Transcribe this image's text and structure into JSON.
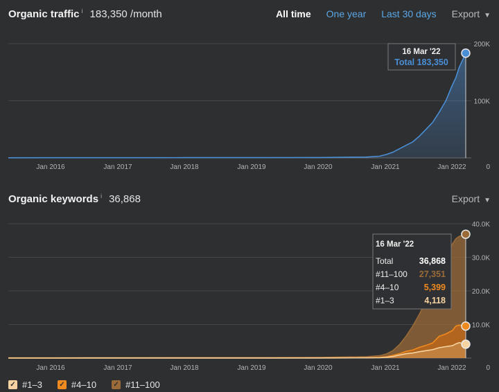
{
  "traffic": {
    "title": "Organic traffic",
    "info_icon": "i",
    "value": "183,350 /month",
    "tabs": [
      "All time",
      "One year",
      "Last 30 days"
    ],
    "export_label": "Export",
    "tooltip": {
      "date": "16 Mar '22",
      "label": "Total",
      "value": "183,350"
    }
  },
  "keywords": {
    "title": "Organic keywords",
    "info_icon": "i",
    "value": "36,868",
    "export_label": "Export",
    "tooltip": {
      "date": "16 Mar '22",
      "rows": [
        {
          "label": "Total",
          "value": "36,868"
        },
        {
          "label": "#11–100",
          "value": "27,351"
        },
        {
          "label": "#4–10",
          "value": "5,399"
        },
        {
          "label": "#1–3",
          "value": "4,118"
        }
      ]
    }
  },
  "legend": [
    {
      "label": "#1–3",
      "color": "#f6d3a0"
    },
    {
      "label": "#4–10",
      "color": "#f08a1f"
    },
    {
      "label": "#11–100",
      "color": "#9a6a38"
    }
  ],
  "chart_data": [
    {
      "type": "area",
      "title": "Organic traffic",
      "x_tick_labels": [
        "Jan 2016",
        "Jan 2017",
        "Jan 2018",
        "Jan 2019",
        "Jan 2020",
        "Jan 2021",
        "Jan 2022"
      ],
      "y_tick_labels": [
        "200K",
        "100K",
        "0"
      ],
      "ylim": [
        0,
        200000
      ],
      "color": "#4a8fd6",
      "series": [
        {
          "values_note_x_in_years": true,
          "x": [
            2015.3,
            2016,
            2017,
            2018,
            2019,
            2020,
            2020.7,
            2020.9,
            2021.0,
            2021.1,
            2021.2,
            2021.3,
            2021.4,
            2021.5,
            2021.6,
            2021.7,
            2021.8,
            2021.9,
            2022.0,
            2022.05,
            2022.1,
            2022.2
          ],
          "y": [
            300,
            400,
            400,
            500,
            500,
            700,
            1500,
            3000,
            6000,
            10000,
            16000,
            22000,
            28000,
            38000,
            50000,
            62000,
            80000,
            100000,
            128000,
            140000,
            158000,
            183350
          ]
        }
      ],
      "marker": {
        "x": 2022.2,
        "y": 183350,
        "label": "16 Mar '22"
      }
    },
    {
      "type": "area",
      "title": "Organic keywords",
      "x_tick_labels": [
        "Jan 2016",
        "Jan 2017",
        "Jan 2018",
        "Jan 2019",
        "Jan 2020",
        "Jan 2021",
        "Jan 2022"
      ],
      "y_tick_labels": [
        "40.0K",
        "30.0K",
        "20.0K",
        "10.0K",
        "0"
      ],
      "ylim": [
        0,
        40000
      ],
      "x": [
        2015.3,
        2016,
        2017,
        2018,
        2019,
        2020,
        2020.7,
        2020.9,
        2021.0,
        2021.1,
        2021.2,
        2021.3,
        2021.4,
        2021.5,
        2021.6,
        2021.7,
        2021.8,
        2021.9,
        2022.0,
        2022.05,
        2022.1,
        2022.2
      ],
      "series": [
        {
          "name": "#11–100",
          "color": "#9a6a38",
          "values": [
            100,
            100,
            120,
            150,
            150,
            200,
            400,
            700,
            1200,
            2200,
            4000,
            6500,
            9500,
            13000,
            17000,
            21000,
            25000,
            30000,
            34000,
            35500,
            36200,
            36868
          ]
        },
        {
          "name": "#4–10",
          "color": "#f08a1f",
          "values": [
            30,
            30,
            40,
            50,
            50,
            70,
            120,
            200,
            400,
            800,
            1300,
            2000,
            2400,
            3200,
            3800,
            4500,
            6500,
            7200,
            8200,
            9500,
            9800,
            9517
          ]
        },
        {
          "name": "#1–3",
          "color": "#f6d3a0",
          "values": [
            10,
            10,
            15,
            20,
            20,
            30,
            60,
            100,
            200,
            450,
            900,
            1300,
            1500,
            1900,
            2200,
            2500,
            3100,
            3400,
            3700,
            4200,
            4600,
            4118
          ]
        }
      ],
      "markers": [
        {
          "series": "#11–100",
          "x": 2022.2,
          "y": 36868
        },
        {
          "series": "#4–10",
          "x": 2022.2,
          "y": 9517
        },
        {
          "series": "#1–3",
          "x": 2022.2,
          "y": 4118
        }
      ]
    }
  ]
}
